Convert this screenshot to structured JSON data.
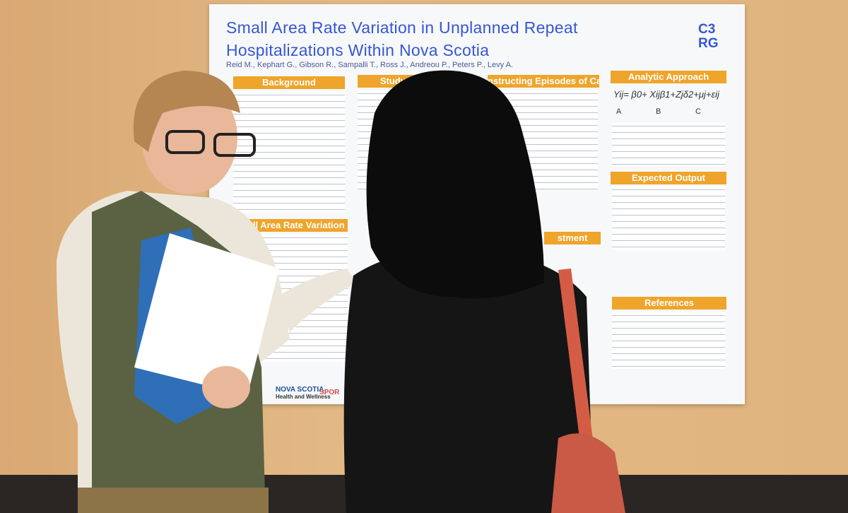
{
  "poster": {
    "title_line1": "Small Area Rate Variation in Unplanned Repeat",
    "title_line2": "Hospitalizations Within Nova Scotia",
    "authors": "Reid M., Kephart G., Gibson R., Sampalli T., Ross J., Andreou P., Peters P., Levy A.",
    "logo_top": "C3",
    "logo_bottom": "RG",
    "sections": {
      "background": "Background",
      "study_design": "Study De",
      "episodes": "nstructing Episodes of Care",
      "analytic": "Analytic Approach",
      "expected": "Expected Output",
      "small_area": "Small Area Rate Variation",
      "references": "References",
      "adjustment": "stment"
    },
    "formula": "Yij= β0+ Xijβ1+Zjδ2+μj+εij",
    "formula_labels": [
      "A",
      "B",
      "C"
    ],
    "sponsor_name": "NOVA SCOTIA",
    "sponsor_sub": "Health and Wellness",
    "sponsor2": "SPOR"
  }
}
